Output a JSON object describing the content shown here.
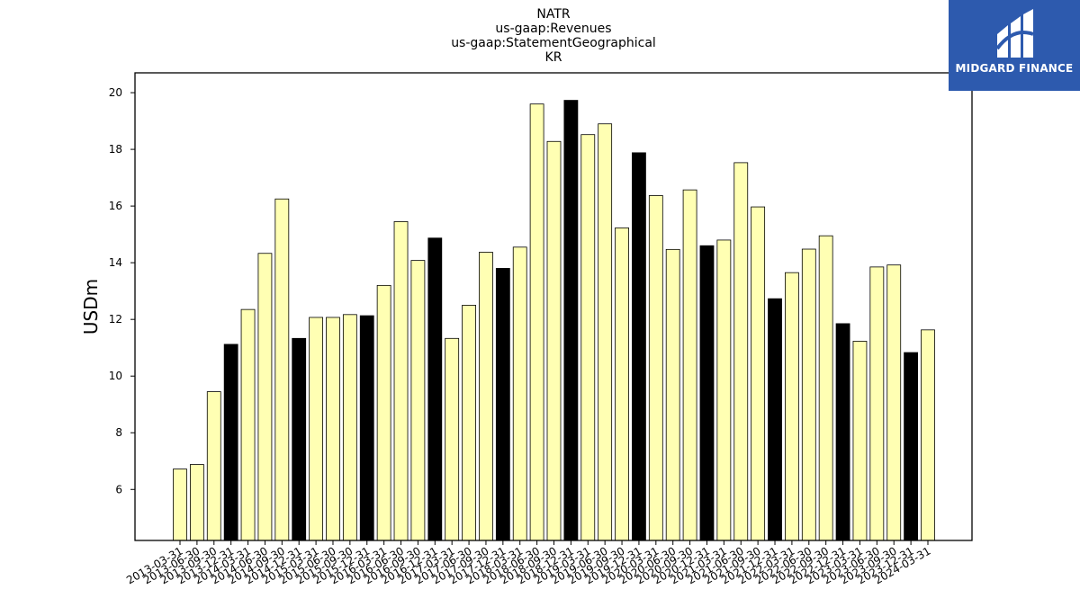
{
  "chart_data": {
    "type": "bar",
    "title_lines": [
      "NATR",
      "us-gaap:Revenues",
      "us-gaap:StatementGeographical",
      "KR"
    ],
    "ylabel": "USDm",
    "xlabel": "",
    "ylim": [
      4.2,
      20.7
    ],
    "yticks": [
      6,
      8,
      10,
      12,
      14,
      16,
      18,
      20
    ],
    "categories": [
      "2013-03-31",
      "2013-06-30",
      "2013-09-30",
      "2013-12-31",
      "2014-03-31",
      "2014-06-30",
      "2014-09-30",
      "2014-12-31",
      "2015-03-31",
      "2015-06-30",
      "2015-09-30",
      "2015-12-31",
      "2016-03-31",
      "2016-06-30",
      "2016-09-30",
      "2016-12-31",
      "2017-03-31",
      "2017-06-30",
      "2017-09-30",
      "2017-12-31",
      "2018-03-31",
      "2018-06-30",
      "2018-09-30",
      "2018-12-31",
      "2019-03-31",
      "2019-06-30",
      "2019-09-30",
      "2019-12-31",
      "2020-03-31",
      "2020-06-30",
      "2020-09-30",
      "2020-12-31",
      "2021-03-31",
      "2021-06-30",
      "2021-09-30",
      "2021-12-31",
      "2022-03-31",
      "2022-06-30",
      "2022-09-30",
      "2022-12-31",
      "2023-03-31",
      "2023-06-30",
      "2023-09-30",
      "2023-12-31",
      "2024-03-31"
    ],
    "values": [
      6.72,
      6.88,
      9.45,
      11.12,
      12.35,
      14.33,
      16.25,
      11.33,
      12.07,
      12.07,
      12.17,
      12.13,
      13.2,
      15.45,
      14.08,
      14.87,
      11.33,
      12.5,
      14.37,
      13.8,
      14.55,
      19.6,
      18.28,
      19.73,
      18.52,
      18.9,
      15.23,
      17.88,
      16.37,
      14.47,
      16.57,
      14.6,
      14.8,
      17.53,
      15.97,
      12.73,
      13.65,
      14.48,
      14.95,
      11.85,
      11.23,
      13.85,
      13.92,
      10.83,
      11.63
    ],
    "colors": {
      "regular": "#ffffb3",
      "q4": "#000000",
      "edge": "#000000"
    },
    "grid": false
  },
  "logo": {
    "text": "MIDGARD FINANCE",
    "icon": "midgard-logo-icon",
    "color": "#2d5aae"
  }
}
